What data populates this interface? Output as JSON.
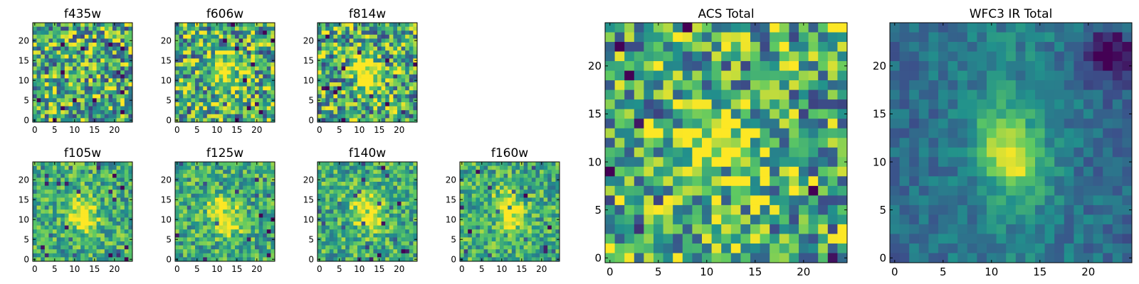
{
  "figure": {
    "colormap": "viridis",
    "colormap_stops": [
      "#440154",
      "#3b528b",
      "#21918c",
      "#5ec962",
      "#fde725"
    ],
    "panels": [
      {
        "title": "f435w",
        "grid_size": 25,
        "source_position": null,
        "noise_level": "high",
        "xticks": [
          "0",
          "5",
          "10",
          "15",
          "20"
        ],
        "yticks": [
          "0",
          "5",
          "10",
          "15",
          "20"
        ]
      },
      {
        "title": "f606w",
        "grid_size": 25,
        "source_position": [
          12,
          12
        ],
        "noise_level": "high",
        "xticks": [
          "0",
          "5",
          "10",
          "15",
          "20"
        ],
        "yticks": [
          "0",
          "5",
          "10",
          "15",
          "20"
        ]
      },
      {
        "title": "f814w",
        "grid_size": 25,
        "source_position": [
          12,
          12
        ],
        "noise_level": "high",
        "xticks": [
          "0",
          "5",
          "10",
          "15",
          "20"
        ],
        "yticks": [
          "0",
          "5",
          "10",
          "15",
          "20"
        ]
      },
      {
        "title": "f105w",
        "grid_size": 25,
        "source_position": [
          12,
          11
        ],
        "noise_level": "medium",
        "xticks": [
          "0",
          "5",
          "10",
          "15",
          "20"
        ],
        "yticks": [
          "0",
          "5",
          "10",
          "15",
          "20"
        ]
      },
      {
        "title": "f125w",
        "grid_size": 25,
        "source_position": [
          12,
          11
        ],
        "noise_level": "medium",
        "xticks": [
          "0",
          "5",
          "10",
          "15",
          "20"
        ],
        "yticks": [
          "0",
          "5",
          "10",
          "15",
          "20"
        ]
      },
      {
        "title": "f140w",
        "grid_size": 25,
        "source_position": [
          12,
          12
        ],
        "noise_level": "medium",
        "xticks": [
          "0",
          "5",
          "10",
          "15",
          "20"
        ],
        "yticks": [
          "0",
          "5",
          "10",
          "15",
          "20"
        ]
      },
      {
        "title": "f160w",
        "grid_size": 25,
        "source_position": [
          12,
          12
        ],
        "noise_level": "medium",
        "xticks": [
          "0",
          "5",
          "10",
          "15",
          "20"
        ],
        "yticks": [
          "0",
          "5",
          "10",
          "15",
          "20"
        ]
      },
      {
        "title": "ACS Total",
        "grid_size": 25,
        "source_position": [
          12,
          11
        ],
        "noise_level": "high",
        "xticks": [
          "0",
          "5",
          "10",
          "15",
          "20"
        ],
        "yticks": [
          "0",
          "5",
          "10",
          "15",
          "20"
        ]
      },
      {
        "title": "WFC3 IR Total",
        "grid_size": 25,
        "source_position": [
          12,
          11
        ],
        "noise_level": "low",
        "xticks": [
          "0",
          "5",
          "10",
          "15",
          "20"
        ],
        "yticks": [
          "0",
          "5",
          "10",
          "15",
          "20"
        ]
      }
    ]
  },
  "chart_data": {
    "type": "heatmap",
    "description_type": "image cutouts",
    "x_range": [
      0,
      24
    ],
    "y_range": [
      0,
      24
    ],
    "xlabel": "",
    "ylabel": "",
    "panel_titles": [
      "f435w",
      "f606w",
      "f814w",
      "f105w",
      "f125w",
      "f140w",
      "f160w",
      "ACS Total",
      "WFC3 IR Total"
    ]
  }
}
